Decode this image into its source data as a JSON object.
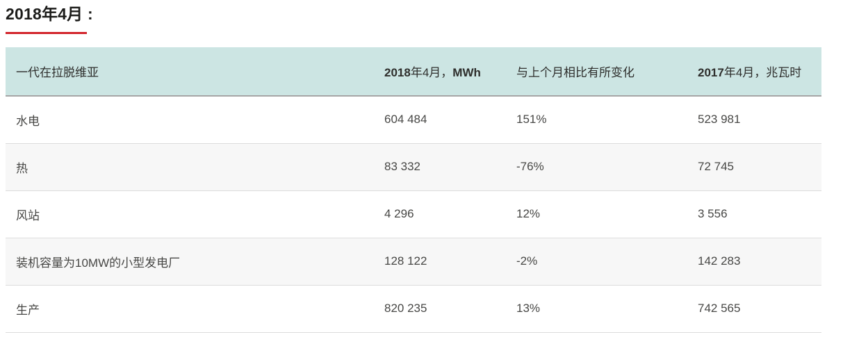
{
  "page": {
    "title": "2018年4月 :",
    "accent_color": "#d2232a",
    "header_bg_color": "#cce5e3"
  },
  "table": {
    "header": {
      "col1": "一代在拉脱维亚",
      "col2_year": "2018",
      "col2_mid": "年4月，",
      "col2_unit": "MWh",
      "col3": "与上个月相比有所变化",
      "col4_year": "2017",
      "col4_rest": "年4月，兆瓦时"
    }
  },
  "chart_data": {
    "type": "table",
    "title": "2018年4月",
    "columns": [
      "一代在拉脱维亚",
      "2018年4月，MWh",
      "与上个月相比有所变化",
      "2017年4月，兆瓦时"
    ],
    "rows": [
      [
        "水电",
        "604 484",
        "151%",
        "523 981"
      ],
      [
        "热",
        "83 332",
        "-76%",
        "72 745"
      ],
      [
        "风站",
        "4 296",
        "12%",
        "3 556"
      ],
      [
        "装机容量为10MW的小型发电厂",
        "128 122",
        "-2%",
        "142 283"
      ],
      [
        "生产",
        "820 235",
        "13%",
        "742 565"
      ]
    ]
  }
}
